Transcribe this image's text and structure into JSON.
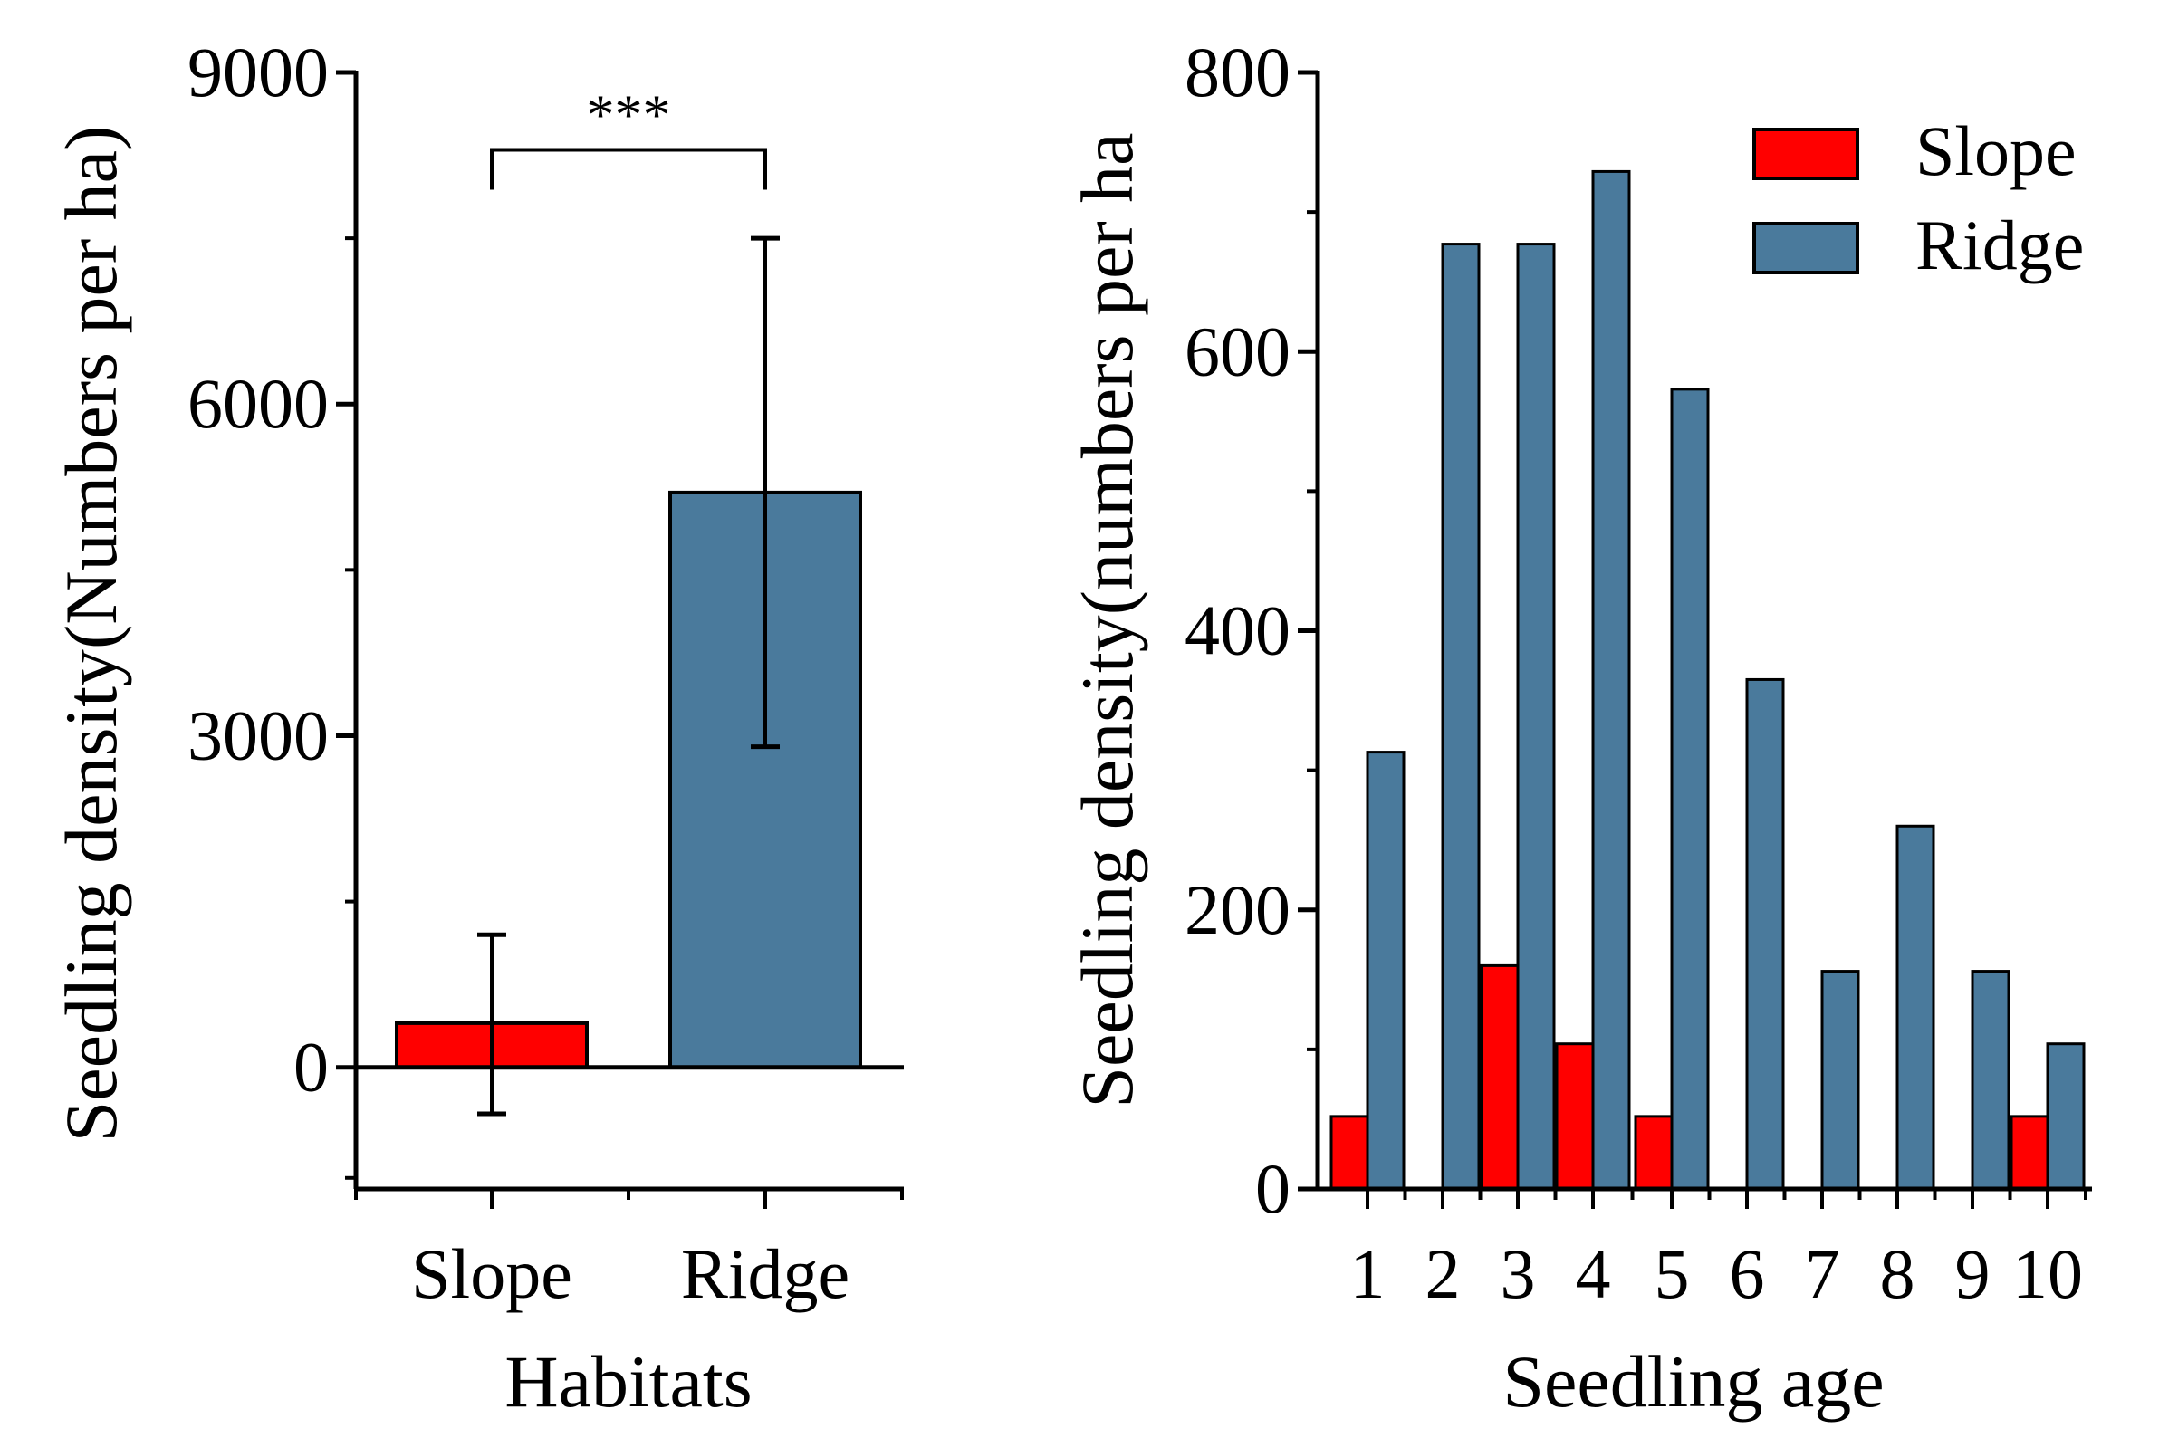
{
  "colors": {
    "slope": "#ff0000",
    "ridge": "#4a7a9c",
    "axis": "#000000"
  },
  "chart_data": [
    {
      "type": "bar",
      "title": "",
      "xlabel": "Habitats",
      "ylabel": "Seedling density(Numbers per ha)",
      "categories": [
        "Slope",
        "Ridge"
      ],
      "values": [
        400,
        5200
      ],
      "error_low": [
        -420,
        2900
      ],
      "error_high": [
        1200,
        7500
      ],
      "ylim": [
        -1100,
        9000
      ],
      "yticks": [
        0,
        3000,
        6000,
        9000
      ],
      "yticklabels": [
        "0",
        "3000",
        "6000",
        "9000"
      ],
      "significance": {
        "label": "***",
        "level": 8300,
        "between": [
          "Slope",
          "Ridge"
        ]
      }
    },
    {
      "type": "bar",
      "title": "",
      "xlabel": "Seedling age",
      "ylabel": "Seedling density(numbers per ha",
      "categories": [
        "1",
        "2",
        "3",
        "4",
        "5",
        "6",
        "7",
        "8",
        "9",
        "10"
      ],
      "series": [
        {
          "name": "Slope",
          "values": [
            52,
            0,
            160,
            104,
            52,
            0,
            0,
            0,
            0,
            52
          ]
        },
        {
          "name": "Ridge",
          "values": [
            313,
            677,
            677,
            729,
            573,
            365,
            156,
            260,
            156,
            104
          ]
        }
      ],
      "ylim": [
        0,
        800
      ],
      "yticks": [
        0,
        200,
        400,
        600,
        800
      ],
      "yticklabels": [
        "0",
        "200",
        "400",
        "600",
        "800"
      ],
      "legend": "top-right"
    }
  ]
}
